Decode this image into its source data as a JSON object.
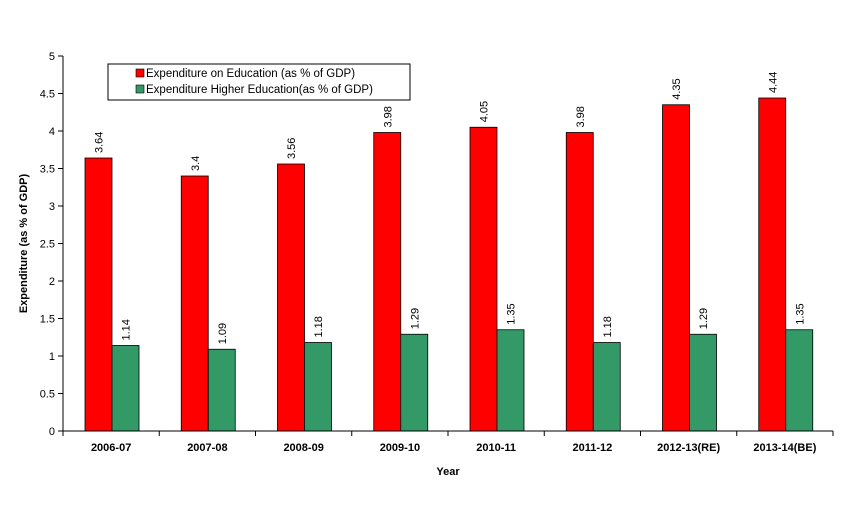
{
  "chart_data": {
    "type": "bar",
    "xlabel": "Year",
    "ylabel": "Expenditure (as % of GDP)",
    "ylim": [
      0,
      5
    ],
    "yticks": [
      "0",
      "0.5",
      "1",
      "1.5",
      "2",
      "2.5",
      "3",
      "3.5",
      "4",
      "4.5",
      "5"
    ],
    "categories": [
      "2006-07",
      "2007-08",
      "2008-09",
      "2009-10",
      "2010-11",
      "2011-12",
      "2012-13(RE)",
      "2013-14(BE)"
    ],
    "series": [
      {
        "name": "Expenditure on Education (as % of GDP)",
        "color": "#ff0000",
        "values": [
          3.64,
          3.4,
          3.56,
          3.98,
          4.05,
          3.98,
          4.35,
          4.44
        ],
        "labels": [
          "3.64",
          "3.4",
          "3.56",
          "3.98",
          "4.05",
          "3.98",
          "4.35",
          "4.44"
        ]
      },
      {
        "name": "Expenditure Higher Education(as % of GDP)",
        "color": "#339966",
        "values": [
          1.14,
          1.09,
          1.18,
          1.29,
          1.35,
          1.18,
          1.29,
          1.35
        ],
        "labels": [
          "1.14",
          "1.09",
          "1.18",
          "1.29",
          "1.35",
          "1.18",
          "1.29",
          "1.35"
        ]
      }
    ],
    "legend_position": "top-left",
    "grid": false
  }
}
